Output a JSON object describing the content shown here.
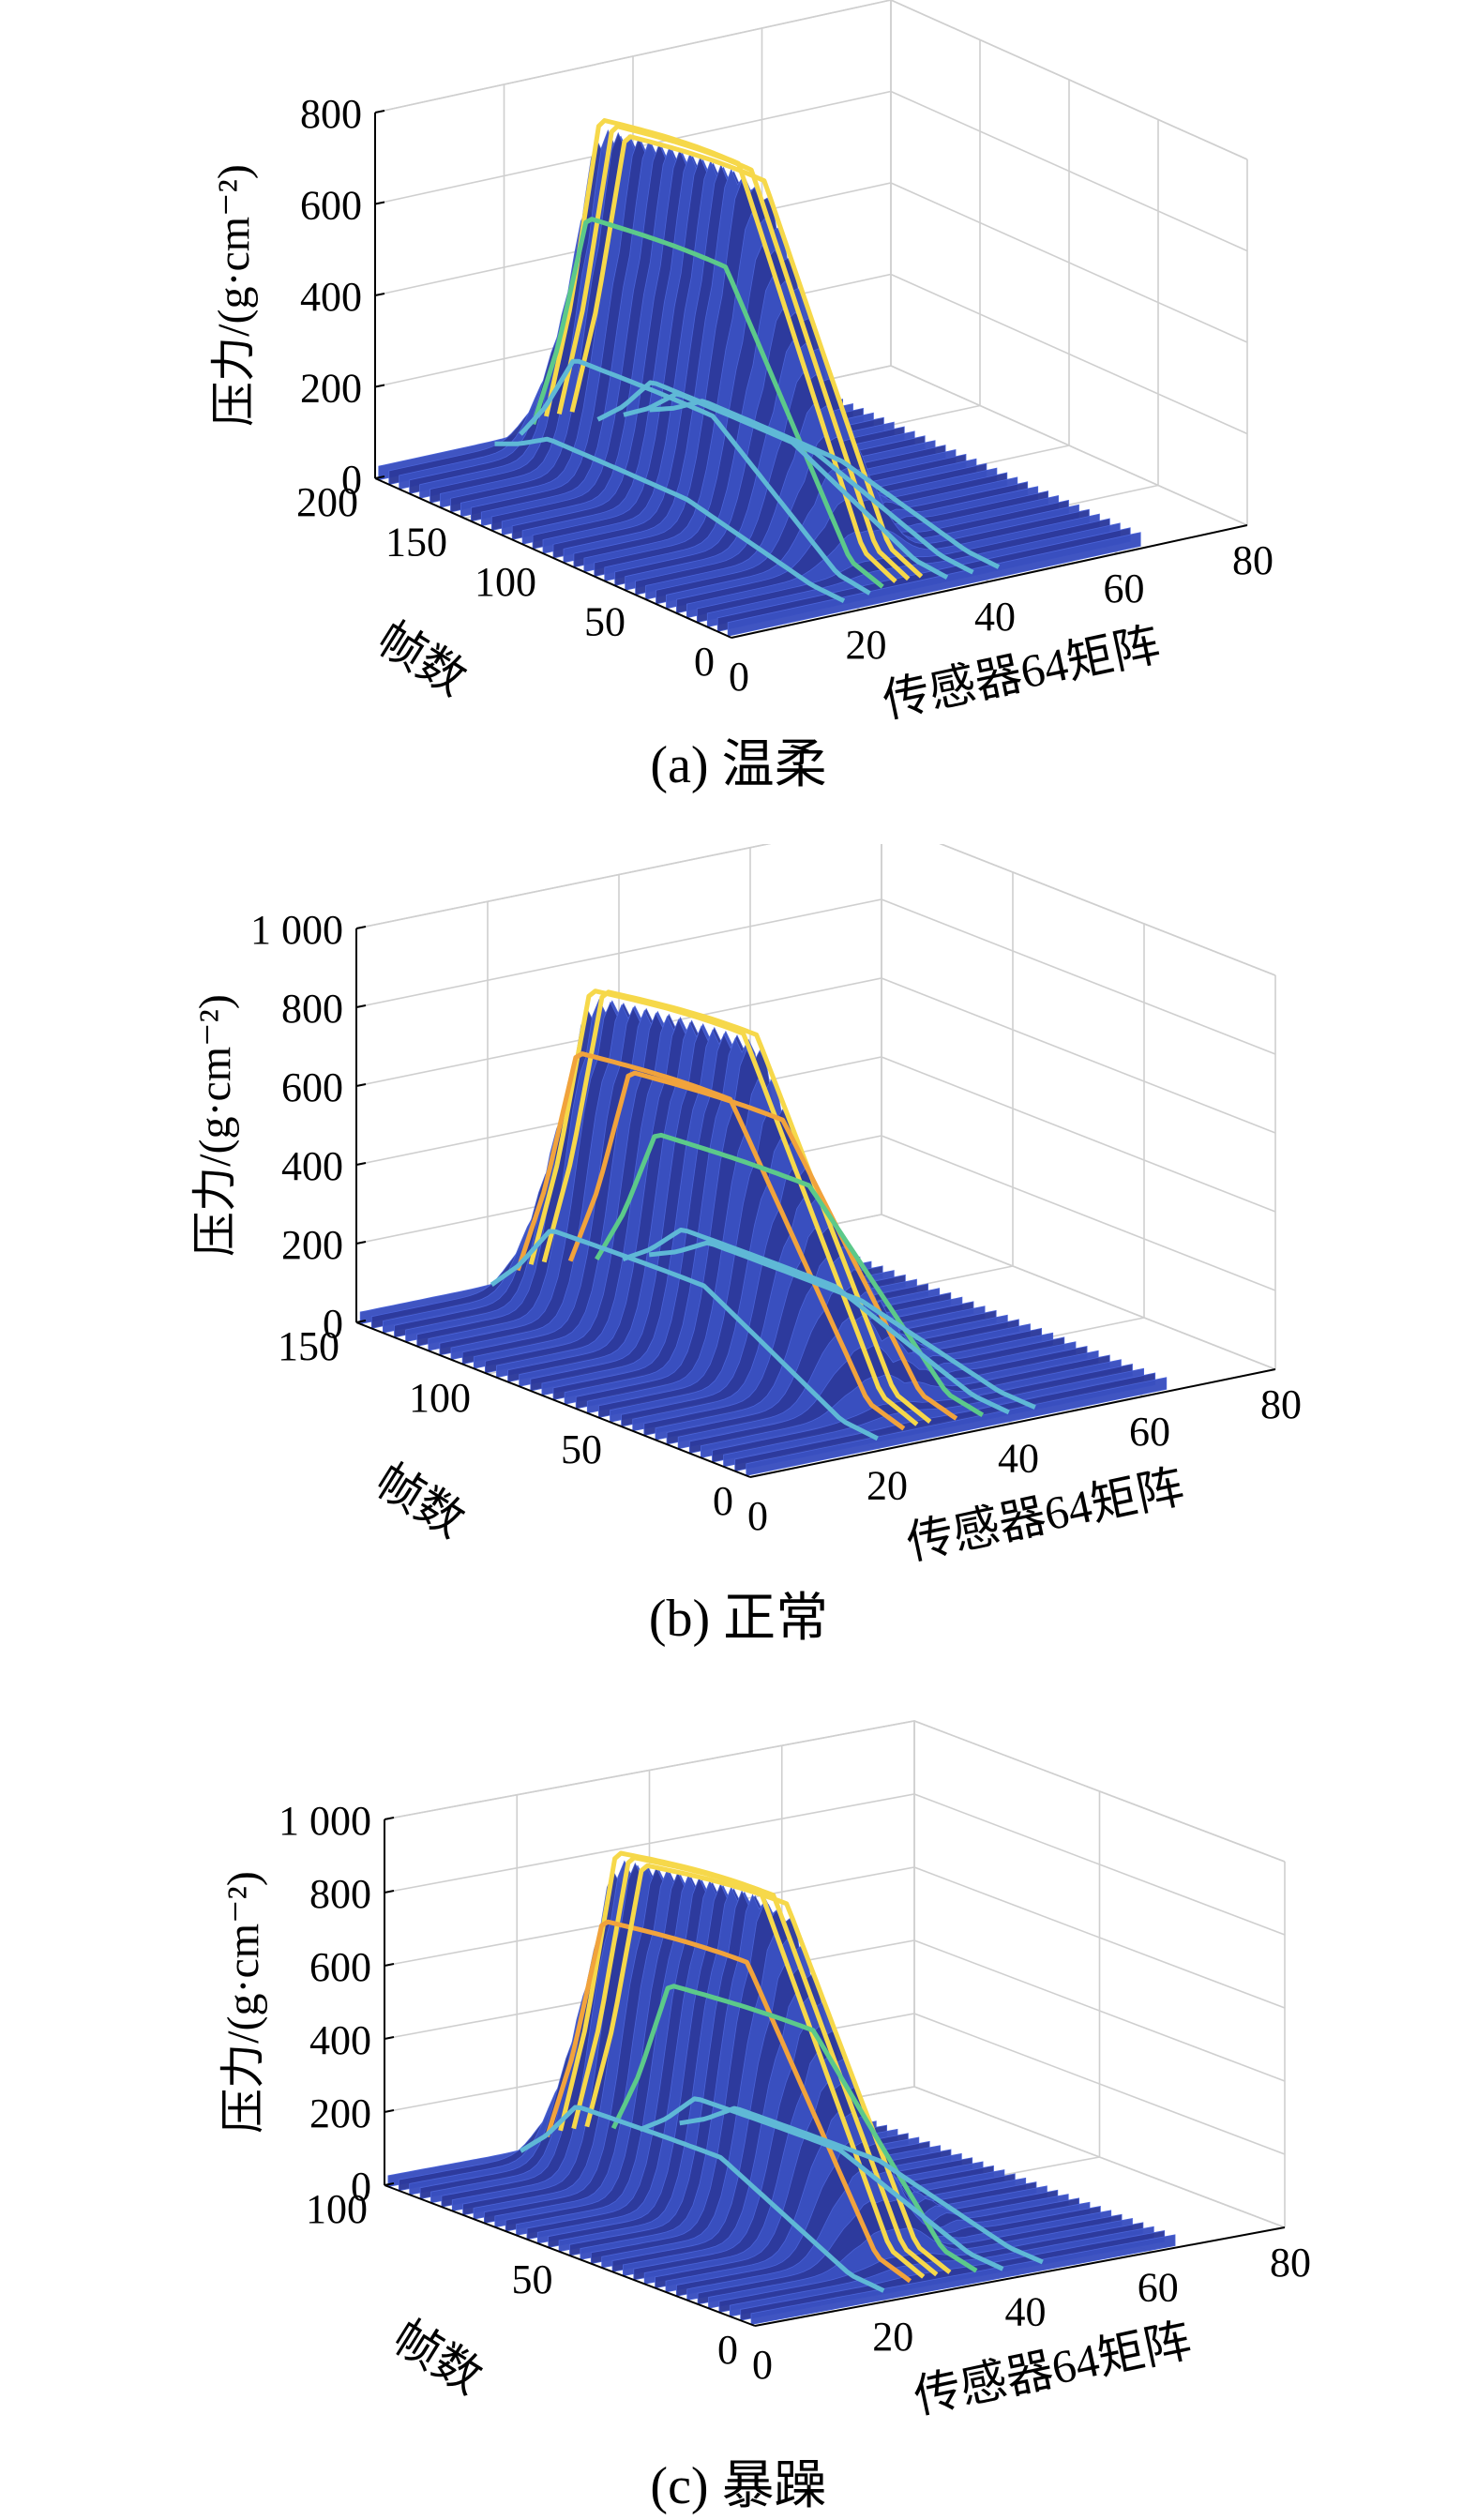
{
  "chart_data": [
    {
      "type": "surface3d",
      "caption": "(a) 温柔",
      "zlabel": "压力/(g·cm⁻²)",
      "ylabel": "帧数",
      "xlabel": "传感器64矩阵",
      "zticks": [
        "0",
        "200",
        "400",
        "600",
        "800"
      ],
      "zlim": [
        0,
        800
      ],
      "yticks": [
        "200",
        "150",
        "100",
        "50",
        "0"
      ],
      "ylim": [
        0,
        200
      ],
      "xticks": [
        "20",
        "40",
        "60",
        "80"
      ],
      "xlim": [
        0,
        80
      ],
      "ridges": [
        {
          "sensor": 26,
          "peak": 780
        },
        {
          "sensor": 28,
          "peak": 760
        },
        {
          "sensor": 30,
          "peak": 730
        },
        {
          "sensor": 24,
          "peak": 560
        },
        {
          "sensor": 22,
          "peak": 240
        },
        {
          "sensor": 34,
          "peak": 150
        },
        {
          "sensor": 38,
          "peak": 110
        },
        {
          "sensor": 42,
          "peak": 80
        },
        {
          "sensor": 18,
          "peak": 70
        }
      ]
    },
    {
      "type": "surface3d",
      "caption": "(b) 正常",
      "zlabel": "压力/(g·cm⁻²)",
      "ylabel": "帧数",
      "xlabel": "传感器64矩阵",
      "zticks": [
        "0",
        "200",
        "400",
        "600",
        "800",
        "1 000"
      ],
      "zlim": [
        0,
        1000
      ],
      "yticks": [
        "150",
        "100",
        "50",
        "0"
      ],
      "ylim": [
        0,
        150
      ],
      "xticks": [
        "20",
        "40",
        "60",
        "80"
      ],
      "xlim": [
        0,
        80
      ],
      "ridges": [
        {
          "sensor": 26,
          "peak": 840
        },
        {
          "sensor": 28,
          "peak": 830
        },
        {
          "sensor": 24,
          "peak": 680
        },
        {
          "sensor": 32,
          "peak": 600
        },
        {
          "sensor": 36,
          "peak": 420
        },
        {
          "sensor": 20,
          "peak": 220
        },
        {
          "sensor": 40,
          "peak": 150
        },
        {
          "sensor": 44,
          "peak": 100
        }
      ]
    },
    {
      "type": "surface3d",
      "caption": "(c) 暴躁",
      "zlabel": "压力/(g·cm⁻²)",
      "ylabel": "帧数",
      "xlabel": "传感器64矩阵",
      "zticks": [
        "0",
        "200",
        "400",
        "600",
        "800",
        "1 000"
      ],
      "zlim": [
        0,
        1000
      ],
      "yticks": [
        "100",
        "50",
        "0"
      ],
      "ylim": [
        0,
        100
      ],
      "xticks": [
        "20",
        "40",
        "60",
        "80"
      ],
      "xlim": [
        0,
        80
      ],
      "ridges": [
        {
          "sensor": 26,
          "peak": 910
        },
        {
          "sensor": 28,
          "peak": 890
        },
        {
          "sensor": 24,
          "peak": 720
        },
        {
          "sensor": 30,
          "peak": 860
        },
        {
          "sensor": 34,
          "peak": 500
        },
        {
          "sensor": 20,
          "peak": 200
        },
        {
          "sensor": 38,
          "peak": 160
        },
        {
          "sensor": 44,
          "peak": 110
        }
      ]
    }
  ],
  "colors": {
    "surface": "#3a4fc0",
    "surface_dark": "#2c3a9c",
    "ridge_high": "#f6d84a",
    "ridge_orange": "#f1a33c",
    "ridge_green": "#5cc98a",
    "ridge_cyan": "#5fb8d6",
    "grid": "#cfcfcf",
    "axis": "#000000"
  }
}
